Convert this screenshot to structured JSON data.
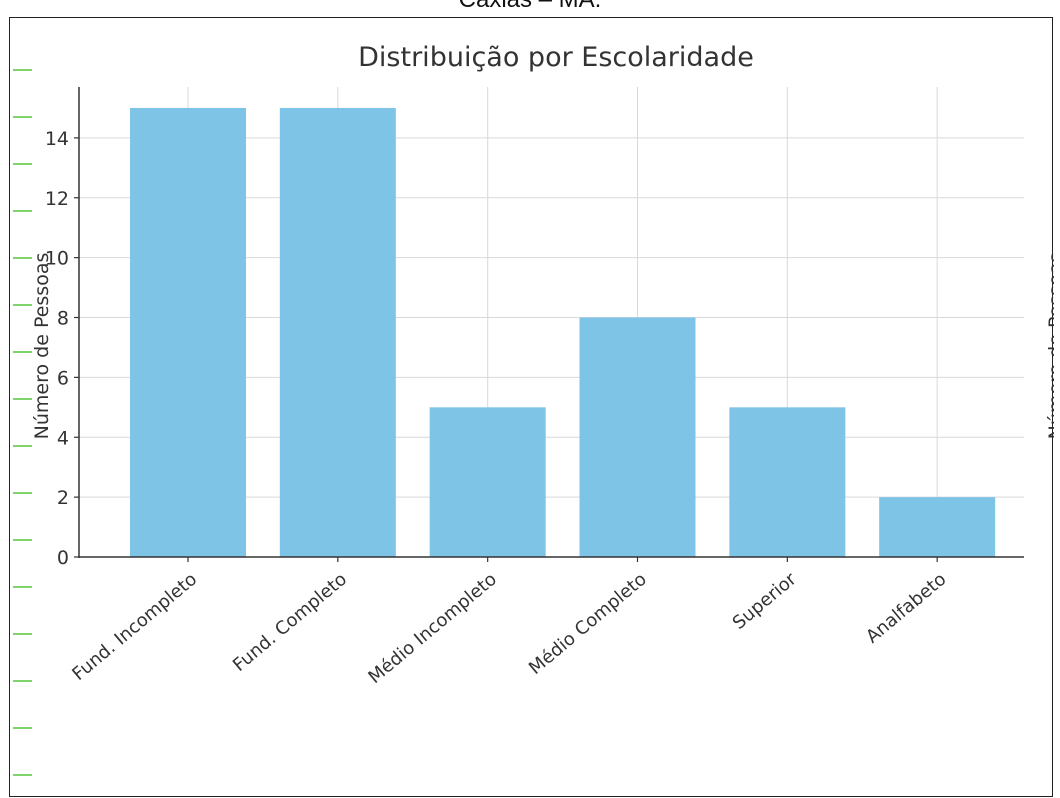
{
  "page": {
    "caption": "Caxias – MA."
  },
  "colors": {
    "bar": "#7ec4e6",
    "grid": "#d9d9d9",
    "axis": "#333333",
    "left_marks": "#7ed36a"
  },
  "chart_data": {
    "type": "bar",
    "title": "Distribuição por Escolaridade",
    "xlabel": "",
    "ylabel": "Número de Pessoas",
    "right_ylabel": "Número de Pessoas",
    "categories": [
      "Fund. Incompleto",
      "Fund. Completo",
      "Médio Incompleto",
      "Médio Completo",
      "Superior",
      "Analfabeto"
    ],
    "values": [
      15,
      15,
      5,
      8,
      5,
      2
    ],
    "ylim": [
      0,
      15.7
    ],
    "yticks": [
      0,
      2,
      4,
      6,
      8,
      10,
      12,
      14
    ],
    "grid": true
  }
}
